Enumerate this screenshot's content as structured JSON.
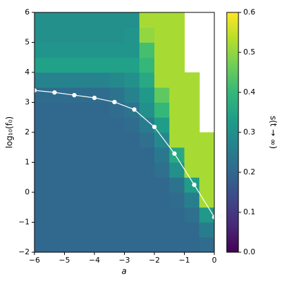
{
  "chart_data": {
    "type": "heatmap",
    "xlabel": "a",
    "ylabel": "log₁₀(f₀)",
    "colorbar_label": "s(t → ∞)",
    "colormap": "viridis",
    "x": [
      -5.75,
      -5.25,
      -4.75,
      -4.25,
      -3.75,
      -3.25,
      -2.75,
      -2.25,
      -1.75,
      -1.25,
      -0.75,
      -0.25
    ],
    "y": [
      -1.75,
      -1.25,
      -0.75,
      -0.25,
      0.25,
      0.75,
      1.25,
      1.75,
      2.25,
      2.75,
      3.25,
      3.75,
      4.25,
      4.75,
      5.25,
      5.75
    ],
    "z": [
      [
        0.2,
        0.2,
        0.2,
        0.2,
        0.2,
        0.2,
        0.2,
        0.2,
        0.2,
        0.2,
        0.2,
        0.21
      ],
      [
        0.2,
        0.2,
        0.2,
        0.2,
        0.2,
        0.2,
        0.2,
        0.2,
        0.2,
        0.2,
        0.2,
        0.25
      ],
      [
        0.2,
        0.2,
        0.2,
        0.2,
        0.2,
        0.2,
        0.2,
        0.2,
        0.2,
        0.2,
        0.22,
        0.32
      ],
      [
        0.2,
        0.2,
        0.2,
        0.2,
        0.2,
        0.2,
        0.2,
        0.2,
        0.2,
        0.21,
        0.26,
        0.52
      ],
      [
        0.2,
        0.2,
        0.2,
        0.2,
        0.2,
        0.2,
        0.2,
        0.2,
        0.2,
        0.23,
        0.33,
        0.52
      ],
      [
        0.2,
        0.2,
        0.2,
        0.2,
        0.2,
        0.2,
        0.2,
        0.2,
        0.22,
        0.3,
        0.52,
        0.52
      ],
      [
        0.2,
        0.2,
        0.2,
        0.2,
        0.2,
        0.2,
        0.2,
        0.2,
        0.24,
        0.36,
        0.52,
        0.52
      ],
      [
        0.2,
        0.2,
        0.2,
        0.2,
        0.2,
        0.2,
        0.2,
        0.22,
        0.28,
        0.52,
        0.52,
        0.52
      ],
      [
        0.2,
        0.2,
        0.2,
        0.2,
        0.2,
        0.2,
        0.21,
        0.25,
        0.33,
        0.52,
        0.52,
        null
      ],
      [
        0.2,
        0.2,
        0.2,
        0.2,
        0.2,
        0.21,
        0.23,
        0.3,
        0.4,
        0.52,
        0.52,
        null
      ],
      [
        0.21,
        0.21,
        0.21,
        0.21,
        0.21,
        0.23,
        0.27,
        0.32,
        0.45,
        0.52,
        0.52,
        null
      ],
      [
        0.27,
        0.27,
        0.27,
        0.27,
        0.27,
        0.28,
        0.3,
        0.36,
        0.52,
        0.52,
        0.52,
        null
      ],
      [
        0.34,
        0.34,
        0.34,
        0.34,
        0.34,
        0.34,
        0.34,
        0.4,
        0.52,
        0.52,
        null,
        null
      ],
      [
        0.31,
        0.31,
        0.31,
        0.31,
        0.31,
        0.31,
        0.31,
        0.42,
        0.52,
        0.52,
        null,
        null
      ],
      [
        0.3,
        0.3,
        0.3,
        0.3,
        0.3,
        0.3,
        0.31,
        0.5,
        0.52,
        0.52,
        null,
        null
      ],
      [
        0.3,
        0.3,
        0.3,
        0.3,
        0.3,
        0.3,
        0.3,
        0.52,
        0.52,
        0.52,
        null,
        null
      ]
    ],
    "line": {
      "color": "#ffffff",
      "x": [
        -6,
        -5.33,
        -4.67,
        -4,
        -3.33,
        -2.67,
        -2,
        -1.33,
        -0.67,
        0
      ],
      "y": [
        3.4,
        3.33,
        3.24,
        3.15,
        3.01,
        2.76,
        2.18,
        1.29,
        0.25,
        -0.83
      ]
    },
    "xlim": [
      -6,
      0
    ],
    "ylim": [
      -2,
      6
    ],
    "xticks": [
      {
        "value": -6,
        "label": "−6"
      },
      {
        "value": -5,
        "label": "−5"
      },
      {
        "value": -4,
        "label": "−4"
      },
      {
        "value": -3,
        "label": "−3"
      },
      {
        "value": -2,
        "label": "−2"
      },
      {
        "value": -1,
        "label": "−1"
      },
      0
    ],
    "yticks": [
      {
        "value": -2,
        "label": "−2"
      },
      {
        "value": -1,
        "label": "−1"
      },
      0,
      1,
      2,
      3,
      4,
      5,
      6
    ],
    "clim": [
      0,
      0.6
    ],
    "cticks": [
      {
        "value": 0,
        "label": "0.0"
      },
      0.1,
      0.2,
      0.3,
      0.4,
      0.5,
      0.6
    ]
  }
}
